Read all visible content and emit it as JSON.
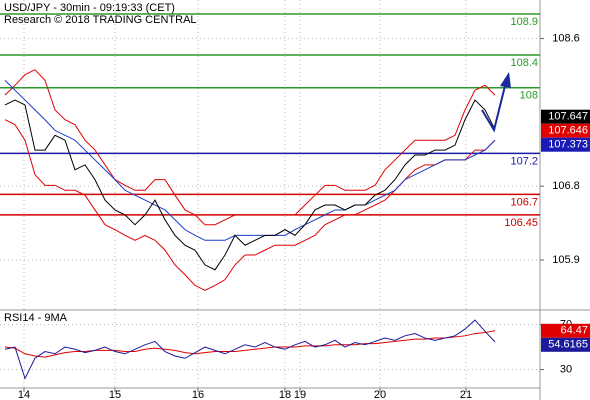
{
  "chart_data": [
    {
      "type": "line",
      "title": "USD/JPY - 30min - 09:19:33 (CET)",
      "subtitle": "Research © 2018 TRADING CENTRAL",
      "ylim": [
        105.29,
        109.07
      ],
      "yticks": [
        105.9,
        106.8,
        108.6
      ],
      "grid": true,
      "series": [
        {
          "color": "#e00000",
          "values": [
            107.91,
            108.03,
            108.16,
            108.22,
            108.09,
            107.73,
            107.61,
            107.55,
            107.36,
            107.24,
            107.06,
            106.88,
            106.81,
            106.75,
            106.75,
            106.88,
            106.88,
            106.69,
            106.51,
            106.45,
            106.33,
            106.33,
            106.39,
            106.45,
            106.45,
            106.45,
            106.45,
            106.45,
            106.45,
            106.45,
            106.57,
            106.69,
            106.81,
            106.81,
            106.75,
            106.75,
            106.75,
            106.81,
            107.0,
            107.12,
            107.24,
            107.36,
            107.36,
            107.36,
            107.36,
            107.42,
            107.73,
            107.97,
            108.03,
            107.91
          ]
        },
        {
          "color": "#e00000",
          "values": [
            107.61,
            107.55,
            107.36,
            106.94,
            106.81,
            106.81,
            106.75,
            106.75,
            106.69,
            106.51,
            106.33,
            106.27,
            106.2,
            106.14,
            106.2,
            106.14,
            106.02,
            105.84,
            105.72,
            105.59,
            105.53,
            105.59,
            105.66,
            105.84,
            105.96,
            105.96,
            106.02,
            106.08,
            106.08,
            106.08,
            106.14,
            106.2,
            106.33,
            106.39,
            106.45,
            106.45,
            106.51,
            106.57,
            106.63,
            106.75,
            106.88,
            107.0,
            107.06,
            107.06,
            107.12,
            107.12,
            107.12,
            107.24,
            107.24,
            107.36
          ]
        },
        {
          "color": "#1a3cc8",
          "values": [
            108.09,
            107.97,
            107.85,
            107.73,
            107.61,
            107.48,
            107.42,
            107.36,
            107.24,
            107.12,
            107.0,
            106.88,
            106.75,
            106.69,
            106.63,
            106.57,
            106.51,
            106.39,
            106.27,
            106.2,
            106.14,
            106.14,
            106.14,
            106.2,
            106.2,
            106.2,
            106.2,
            106.2,
            106.2,
            106.27,
            106.33,
            106.39,
            106.45,
            106.51,
            106.51,
            106.57,
            106.57,
            106.63,
            106.69,
            106.75,
            106.88,
            106.94,
            107.0,
            107.06,
            107.12,
            107.12,
            107.12,
            107.18,
            107.24,
            107.36
          ]
        },
        {
          "color": "#000000",
          "values": [
            107.79,
            107.85,
            107.79,
            107.24,
            107.24,
            107.42,
            107.36,
            107.0,
            107.06,
            106.88,
            106.63,
            106.51,
            106.45,
            106.33,
            106.45,
            106.63,
            106.39,
            106.2,
            106.08,
            106.02,
            105.84,
            105.78,
            105.96,
            106.2,
            106.08,
            106.14,
            106.2,
            106.2,
            106.27,
            106.2,
            106.33,
            106.51,
            106.57,
            106.57,
            106.51,
            106.57,
            106.57,
            106.69,
            106.75,
            106.88,
            107.06,
            107.18,
            107.18,
            107.24,
            107.24,
            107.3,
            107.61,
            107.85,
            107.73,
            107.49
          ]
        }
      ],
      "levels": [
        {
          "value": 108.9,
          "color": "#2a9a2a"
        },
        {
          "value": 108.4,
          "color": "#2a9a2a"
        },
        {
          "value": 108,
          "color": "#2a9a2a"
        },
        {
          "value": 107.2,
          "color": "#1a1aa8"
        },
        {
          "value": 106.7,
          "color": "#d00000"
        },
        {
          "value": 106.45,
          "color": "#d00000"
        }
      ],
      "last_labels": [
        {
          "value": 107.647,
          "color": "#000000"
        },
        {
          "value": 107.646,
          "color": "#e00000"
        },
        {
          "value": 107.373,
          "color": "#1a1ab4"
        }
      ]
    },
    {
      "type": "line",
      "title": "RSI14 - 9MA",
      "ylim": [
        13.5,
        83
      ],
      "yticks": [
        30,
        70
      ],
      "grid": true,
      "xlim": [
        -0.5,
        53.5
      ],
      "xticks": [
        {
          "value": 1.9,
          "label": "14"
        },
        {
          "value": 11,
          "label": "15"
        },
        {
          "value": 19.3,
          "label": "16"
        },
        {
          "value": 28,
          "label": "18"
        },
        {
          "value": 29.5,
          "label": "19"
        },
        {
          "value": 37.5,
          "label": "20"
        },
        {
          "value": 46.1,
          "label": "21"
        }
      ],
      "series": [
        {
          "color": "#e00000",
          "values": [
            50,
            49,
            44,
            42,
            41,
            43,
            45,
            46,
            46,
            47,
            47,
            47,
            46,
            46,
            48,
            49,
            48,
            47,
            45,
            44,
            45,
            46,
            46,
            46,
            47,
            48,
            49,
            50,
            50,
            50,
            51,
            51,
            51,
            52,
            52,
            52,
            53,
            53,
            54,
            55,
            56,
            57,
            57,
            58,
            58,
            59,
            60,
            62,
            63,
            64.47
          ]
        },
        {
          "color": "#1a1a9a",
          "values": [
            48,
            50,
            22,
            40,
            46,
            44,
            50,
            48,
            45,
            47,
            50,
            46,
            44,
            48,
            52,
            55,
            46,
            42,
            40,
            45,
            50,
            47,
            44,
            48,
            52,
            50,
            54,
            50,
            48,
            52,
            55,
            50,
            52,
            56,
            50,
            54,
            52,
            55,
            58,
            56,
            60,
            62,
            58,
            56,
            58,
            60,
            66,
            74,
            64,
            54.6165
          ]
        }
      ]
    }
  ]
}
